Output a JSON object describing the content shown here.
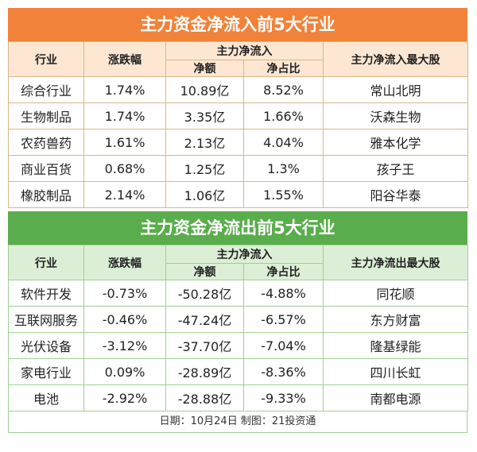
{
  "inflow": {
    "title": "主力资金净流入前5大行业",
    "headers": {
      "industry": "行业",
      "change": "涨跌幅",
      "main_net": "主力净流入",
      "net_amount": "净额",
      "net_ratio": "净占比",
      "top_stock": "主力净流入最大股"
    },
    "rows": [
      {
        "industry": "综合行业",
        "change": "1.74%",
        "net_amount": "10.89亿",
        "net_ratio": "8.52%",
        "top_stock": "常山北明"
      },
      {
        "industry": "生物制品",
        "change": "1.74%",
        "net_amount": "3.35亿",
        "net_ratio": "1.66%",
        "top_stock": "沃森生物"
      },
      {
        "industry": "农药兽药",
        "change": "1.61%",
        "net_amount": "2.13亿",
        "net_ratio": "4.04%",
        "top_stock": "雅本化学"
      },
      {
        "industry": "商业百货",
        "change": "0.68%",
        "net_amount": "1.25亿",
        "net_ratio": "1.3%",
        "top_stock": "孩子王"
      },
      {
        "industry": "橡胶制品",
        "change": "2.14%",
        "net_amount": "1.06亿",
        "net_ratio": "1.55%",
        "top_stock": "阳谷华泰"
      }
    ]
  },
  "outflow": {
    "title": "主力资金净流出前5大行业",
    "headers": {
      "industry": "行业",
      "change": "涨跌幅",
      "main_net": "主力净流入",
      "net_amount": "净额",
      "net_ratio": "净占比",
      "top_stock": "主力净流出最大股"
    },
    "rows": [
      {
        "industry": "软件开发",
        "change": "-0.73%",
        "net_amount": "-50.28亿",
        "net_ratio": "-4.88%",
        "top_stock": "同花顺"
      },
      {
        "industry": "互联网服务",
        "change": "-0.46%",
        "net_amount": "-47.24亿",
        "net_ratio": "-6.57%",
        "top_stock": "东方财富"
      },
      {
        "industry": "光伏设备",
        "change": "-3.12%",
        "net_amount": "-37.70亿",
        "net_ratio": "-7.04%",
        "top_stock": "隆基绿能"
      },
      {
        "industry": "家电行业",
        "change": "0.09%",
        "net_amount": "-28.89亿",
        "net_ratio": "-8.36%",
        "top_stock": "四川长虹"
      },
      {
        "industry": "电池",
        "change": "-2.92%",
        "net_amount": "-28.88亿",
        "net_ratio": "-9.33%",
        "top_stock": "南都电源"
      }
    ]
  },
  "footer": "日期：10月24日 制图：21投资通",
  "colors": {
    "inflow_title": "#f0823a",
    "inflow_header": "#fde7d2",
    "outflow_title": "#5aad4c",
    "outflow_header": "#dcefd6"
  }
}
